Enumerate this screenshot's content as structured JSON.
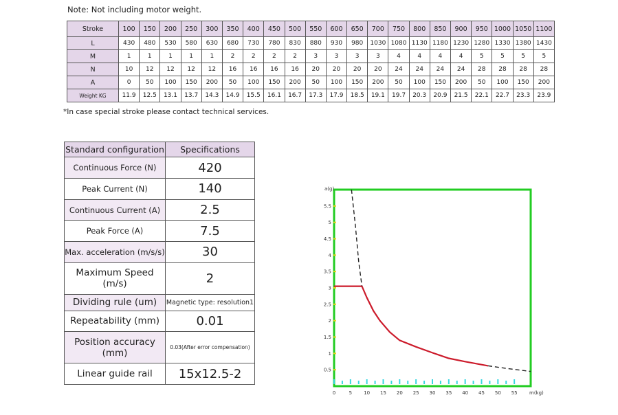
{
  "note_top": "Note: Not including motor weight.",
  "note_special": "*In case special stroke please contact technical services.",
  "stroke_table": {
    "rows": [
      {
        "label": "Stroke",
        "values": [
          "100",
          "150",
          "200",
          "250",
          "300",
          "350",
          "400",
          "450",
          "500",
          "550",
          "600",
          "650",
          "700",
          "750",
          "800",
          "850",
          "900",
          "950",
          "1000",
          "1050",
          "1100"
        ]
      },
      {
        "label": "L",
        "values": [
          "430",
          "480",
          "530",
          "580",
          "630",
          "680",
          "730",
          "780",
          "830",
          "880",
          "930",
          "980",
          "1030",
          "1080",
          "1130",
          "1180",
          "1230",
          "1280",
          "1330",
          "1380",
          "1430"
        ]
      },
      {
        "label": "M",
        "values": [
          "1",
          "1",
          "1",
          "1",
          "1",
          "2",
          "2",
          "2",
          "2",
          "3",
          "3",
          "3",
          "3",
          "4",
          "4",
          "4",
          "4",
          "5",
          "5",
          "5",
          "5"
        ]
      },
      {
        "label": "N",
        "values": [
          "10",
          "12",
          "12",
          "12",
          "12",
          "16",
          "16",
          "16",
          "16",
          "20",
          "20",
          "20",
          "20",
          "24",
          "24",
          "24",
          "24",
          "28",
          "28",
          "28",
          "28"
        ]
      },
      {
        "label": "A",
        "values": [
          "0",
          "50",
          "100",
          "150",
          "200",
          "50",
          "100",
          "150",
          "200",
          "50",
          "100",
          "150",
          "200",
          "50",
          "100",
          "150",
          "200",
          "50",
          "100",
          "150",
          "200"
        ]
      },
      {
        "label": "Weight KG",
        "values": [
          "11.9",
          "12.5",
          "13.1",
          "13.7",
          "14.3",
          "14.9",
          "15.5",
          "16.1",
          "16.7",
          "17.3",
          "17.9",
          "18.5",
          "19.1",
          "19.7",
          "20.3",
          "20.9",
          "21.5",
          "22.1",
          "22.7",
          "23.3",
          "23.9"
        ]
      }
    ]
  },
  "spec_table": {
    "header": {
      "k": "Standard configuration",
      "v": "Specifications"
    },
    "rows": [
      {
        "k": "Continuous Force (N)",
        "v": "420"
      },
      {
        "k": "Peak Current (N)",
        "v": "140"
      },
      {
        "k": "Continuous Current (A)",
        "v": "2.5"
      },
      {
        "k": "Peak Force (A)",
        "v": "7.5"
      },
      {
        "k": "Max. acceleration (m/s/s)",
        "v": "30"
      },
      {
        "k": "Maximum Speed (m/s)",
        "v": "2"
      },
      {
        "k": "Dividing rule (um)",
        "v": "Magnetic type: resolution1"
      },
      {
        "k": "Repeatability (mm)",
        "v": "0.01"
      },
      {
        "k": "Position accuracy (mm)",
        "v": "0.03(After error compensation)"
      },
      {
        "k": "Linear guide rail",
        "v": "15x12.5-2"
      }
    ]
  },
  "chart_data": {
    "type": "line",
    "ylabel": "a(g)",
    "xlabel": "m(kg)",
    "xlim": [
      0,
      60
    ],
    "ylim": [
      0,
      6
    ],
    "xticks": [
      "0",
      "5",
      "10",
      "15",
      "20",
      "25",
      "30",
      "35",
      "40",
      "45",
      "50",
      "55"
    ],
    "yticks": [
      "0.5",
      "1",
      "1.5",
      "2",
      "2.5",
      "3",
      "3.5",
      "4",
      "4.5",
      "5",
      "5.5"
    ],
    "grid": false,
    "border_color": "#22cc22",
    "series": [
      {
        "color": "#cc1b2b",
        "style": "solid",
        "x": [
          0,
          8.5,
          10,
          12,
          14,
          17,
          20,
          25,
          30,
          35,
          40,
          47
        ],
        "y": [
          3.05,
          3.05,
          2.7,
          2.3,
          2.0,
          1.65,
          1.4,
          1.2,
          1.02,
          0.85,
          0.75,
          0.62
        ]
      },
      {
        "color": "#222222",
        "style": "dashed",
        "x": [
          5.3,
          6.5,
          7.5,
          8.5
        ],
        "y": [
          6.0,
          4.9,
          3.8,
          3.05
        ]
      },
      {
        "color": "#222222",
        "style": "dashed",
        "x": [
          47,
          52,
          56,
          60
        ],
        "y": [
          0.62,
          0.55,
          0.5,
          0.45
        ]
      }
    ]
  }
}
